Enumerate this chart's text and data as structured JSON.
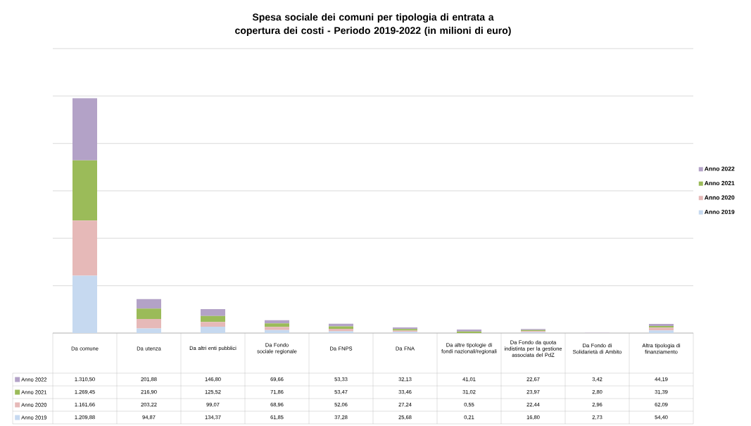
{
  "chart_data": {
    "type": "bar",
    "stacked": true,
    "title": "Spesa sociale dei comuni per tipologia di entrata a copertura dei costi - Periodo 2019-2022 (in milioni di euro)",
    "categories": [
      "Da comune",
      "Da utenza",
      "Da altri enti pubblici",
      "Da Fondo sociale regionale",
      "Da FNPS",
      "Da FNA",
      "Da altre tipologie di fondi nazionali/regionali",
      "Da Fondo da quota indistinta per la gestione associata del PdZ",
      "Da Fondo di Solidarietà di Ambito",
      "Altra tipologia di finanziamento"
    ],
    "series": [
      {
        "name": "Anno 2019",
        "color": "#c6d9f0",
        "values": [
          1209.88,
          94.87,
          134.37,
          61.85,
          37.28,
          25.68,
          0.21,
          16.8,
          2.73,
          54.4
        ],
        "value_labels": [
          "1.209,88",
          "94,87",
          "134,37",
          "61,85",
          "37,28",
          "25,68",
          "0,21",
          "16,80",
          "2,73",
          "54,40"
        ]
      },
      {
        "name": "Anno 2020",
        "color": "#e6b9b8",
        "values": [
          1161.66,
          203.22,
          99.07,
          68.96,
          52.06,
          27.24,
          0.55,
          22.44,
          2.96,
          62.09
        ],
        "value_labels": [
          "1.161,66",
          "203,22",
          "99,07",
          "68,96",
          "52,06",
          "27,24",
          "0,55",
          "22,44",
          "2,96",
          "62,09"
        ]
      },
      {
        "name": "Anno 2021",
        "color": "#9bbb59",
        "values": [
          1269.45,
          216.9,
          125.52,
          71.86,
          53.47,
          33.46,
          31.02,
          23.97,
          2.8,
          31.39
        ],
        "value_labels": [
          "1.269,45",
          "216,90",
          "125,52",
          "71,86",
          "53,47",
          "33,46",
          "31,02",
          "23,97",
          "2,80",
          "31,39"
        ]
      },
      {
        "name": "Anno 2022",
        "color": "#b3a2c7",
        "values": [
          1310.5,
          201.88,
          146.8,
          69.66,
          53.33,
          32.13,
          41.01,
          22.67,
          3.42,
          44.19
        ],
        "value_labels": [
          "1.310,50",
          "201,88",
          "146,80",
          "69,66",
          "53,33",
          "32,13",
          "41,01",
          "22,67",
          "3,42",
          "44,19"
        ]
      }
    ],
    "ylim": [
      0,
      6000
    ],
    "yticks": [
      {
        "value": 0,
        "label": null
      },
      {
        "value": 1000,
        "label": null
      },
      {
        "value": 2000,
        "label": null
      },
      {
        "value": 3000,
        "label": null
      },
      {
        "value": 4000,
        "label": null
      },
      {
        "value": 5000,
        "label": null
      },
      {
        "value": 6000,
        "label": null
      }
    ],
    "tick_labels": "x",
    "grid": "y",
    "legend": "right"
  }
}
